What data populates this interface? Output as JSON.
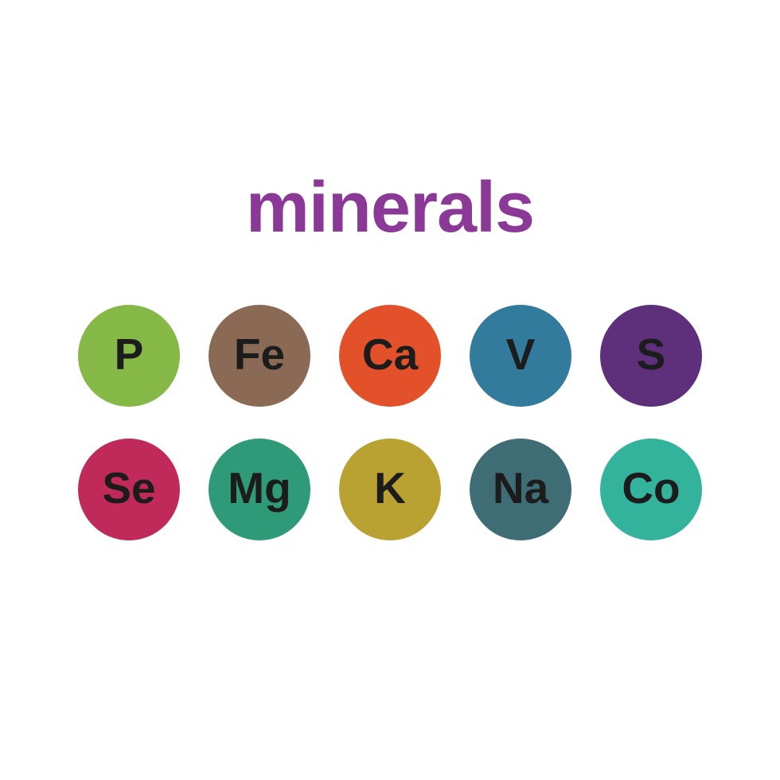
{
  "type": "infographic",
  "background_color": "#ffffff",
  "title": {
    "text": "minerals",
    "color": "#8a3a96",
    "fontsize": 90,
    "font_weight": 700
  },
  "grid": {
    "columns": 5,
    "rows": 2,
    "circle_diameter": 128,
    "column_gap": 36,
    "row_gap": 40,
    "label_fontsize": 55,
    "label_color": "#1c1c1c",
    "label_font_weight": 700
  },
  "minerals": [
    {
      "symbol": "P",
      "color": "#86b848"
    },
    {
      "symbol": "Fe",
      "color": "#8a6a55"
    },
    {
      "symbol": "Ca",
      "color": "#e25129"
    },
    {
      "symbol": "V",
      "color": "#327b9c"
    },
    {
      "symbol": "S",
      "color": "#5e2f7b"
    },
    {
      "symbol": "Se",
      "color": "#c02a5a"
    },
    {
      "symbol": "Mg",
      "color": "#2f9a78"
    },
    {
      "symbol": "K",
      "color": "#b9a232"
    },
    {
      "symbol": "Na",
      "color": "#3f6d76"
    },
    {
      "symbol": "Co",
      "color": "#33b39c"
    }
  ]
}
